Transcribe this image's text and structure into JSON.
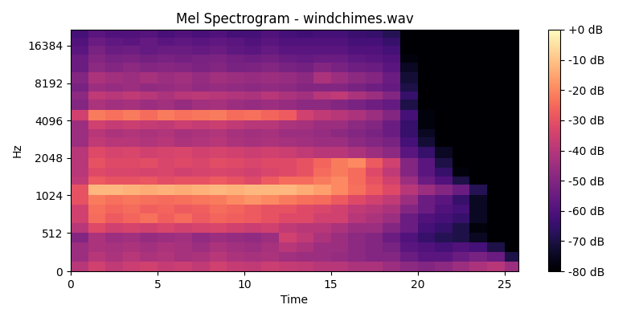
{
  "chart_data": {
    "type": "heatmap",
    "title": "Mel Spectrogram - windchimes.wav",
    "x_label": "Time",
    "y_label": "Hz",
    "color": "magma",
    "xlim": [
      0,
      25.8
    ],
    "xticks": [
      0,
      5,
      10,
      15,
      20,
      25
    ],
    "ylim": [
      0,
      22050
    ],
    "yticks": [
      0,
      512,
      1024,
      2048,
      4096,
      8192,
      16384
    ],
    "time_edges": [
      0,
      1,
      2,
      3,
      4,
      5,
      6,
      7,
      8,
      9,
      10,
      11,
      12,
      13,
      14,
      15,
      16,
      17,
      18,
      19,
      20,
      21,
      22,
      23,
      24,
      25,
      25.8
    ],
    "freq_edges": [
      0,
      128,
      256,
      384,
      512,
      640,
      768,
      896,
      1024,
      1250,
      1450,
      1700,
      2048,
      2500,
      3000,
      3500,
      4096,
      5000,
      6000,
      7000,
      8192,
      10000,
      12000,
      14000,
      16384,
      19000,
      22050
    ],
    "cells": [
      [
        -40,
        -35,
        -38,
        -36,
        -35,
        -37,
        -36,
        -38,
        -35,
        -37,
        -38,
        -36,
        -37,
        -38,
        -40,
        -40,
        -42,
        -42,
        -45,
        -48,
        -50,
        -48,
        -45,
        -42,
        -40,
        -45
      ],
      [
        -45,
        -40,
        -42,
        -40,
        -42,
        -41,
        -43,
        -42,
        -40,
        -42,
        -43,
        -42,
        -44,
        -45,
        -45,
        -46,
        -48,
        -50,
        -50,
        -55,
        -58,
        -58,
        -55,
        -52,
        -55,
        -70
      ],
      [
        -45,
        -42,
        -43,
        -42,
        -44,
        -42,
        -43,
        -45,
        -42,
        -44,
        -45,
        -43,
        -40,
        -42,
        -45,
        -45,
        -48,
        -50,
        -52,
        -58,
        -60,
        -62,
        -60,
        -62,
        -70,
        -80
      ],
      [
        -50,
        -42,
        -45,
        -44,
        -46,
        -45,
        -44,
        -47,
        -45,
        -46,
        -47,
        -45,
        -35,
        -38,
        -42,
        -45,
        -48,
        -50,
        -55,
        -60,
        -65,
        -68,
        -70,
        -75,
        -80,
        -80
      ],
      [
        -40,
        -32,
        -35,
        -34,
        -35,
        -33,
        -35,
        -34,
        -33,
        -35,
        -36,
        -35,
        -38,
        -40,
        -40,
        -42,
        -45,
        -45,
        -50,
        -55,
        -62,
        -65,
        -70,
        -78,
        -80,
        -80
      ],
      [
        -35,
        -25,
        -28,
        -26,
        -24,
        -27,
        -25,
        -28,
        -26,
        -27,
        -28,
        -30,
        -32,
        -32,
        -35,
        -35,
        -40,
        -42,
        -45,
        -55,
        -60,
        -62,
        -65,
        -75,
        -80,
        -80
      ],
      [
        -35,
        -24,
        -26,
        -25,
        -27,
        -26,
        -28,
        -27,
        -25,
        -26,
        -28,
        -30,
        -30,
        -32,
        -33,
        -35,
        -38,
        -40,
        -42,
        -50,
        -55,
        -60,
        -62,
        -75,
        -80,
        -80
      ],
      [
        -30,
        -22,
        -24,
        -23,
        -24,
        -25,
        -24,
        -23,
        -22,
        -20,
        -18,
        -20,
        -22,
        -24,
        -25,
        -28,
        -32,
        -35,
        -38,
        -45,
        -55,
        -58,
        -65,
        -75,
        -80,
        -80
      ],
      [
        -30,
        -12,
        -12,
        -13,
        -14,
        -13,
        -14,
        -13,
        -12,
        -13,
        -12,
        -12,
        -12,
        -14,
        -16,
        -20,
        -24,
        -28,
        -32,
        -40,
        -45,
        -50,
        -55,
        -68,
        -80,
        -80
      ],
      [
        -38,
        -28,
        -30,
        -30,
        -29,
        -31,
        -30,
        -30,
        -28,
        -30,
        -32,
        -28,
        -25,
        -25,
        -22,
        -20,
        -25,
        -30,
        -35,
        -45,
        -55,
        -60,
        -70,
        -80,
        -80,
        -80
      ],
      [
        -40,
        -32,
        -33,
        -33,
        -34,
        -33,
        -35,
        -34,
        -33,
        -34,
        -35,
        -33,
        -32,
        -30,
        -25,
        -22,
        -25,
        -32,
        -38,
        -50,
        -58,
        -65,
        -78,
        -80,
        -80,
        -80
      ],
      [
        -40,
        -30,
        -32,
        -32,
        -31,
        -33,
        -32,
        -33,
        -31,
        -32,
        -33,
        -32,
        -32,
        -30,
        -26,
        -22,
        -20,
        -28,
        -35,
        -50,
        -58,
        -70,
        -80,
        -80,
        -80,
        -80
      ],
      [
        -40,
        -32,
        -34,
        -33,
        -35,
        -34,
        -33,
        -35,
        -34,
        -35,
        -36,
        -35,
        -36,
        -38,
        -40,
        -40,
        -42,
        -45,
        -48,
        -58,
        -65,
        -75,
        -80,
        -80,
        -80,
        -80
      ],
      [
        -45,
        -38,
        -40,
        -40,
        -41,
        -40,
        -42,
        -41,
        -40,
        -42,
        -43,
        -42,
        -43,
        -44,
        -45,
        -45,
        -48,
        -50,
        -52,
        -62,
        -72,
        -80,
        -80,
        -80,
        -80,
        -80
      ],
      [
        -45,
        -40,
        -42,
        -41,
        -42,
        -41,
        -43,
        -42,
        -41,
        -43,
        -44,
        -43,
        -45,
        -45,
        -46,
        -48,
        -50,
        -52,
        -55,
        -65,
        -75,
        -80,
        -80,
        -80,
        -80,
        -80
      ],
      [
        -45,
        -35,
        -37,
        -36,
        -37,
        -38,
        -36,
        -37,
        -36,
        -38,
        -40,
        -40,
        -42,
        -43,
        -45,
        -45,
        -48,
        -50,
        -55,
        -65,
        -78,
        -80,
        -80,
        -80,
        -80,
        -80
      ],
      [
        -35,
        -22,
        -24,
        -22,
        -25,
        -22,
        -24,
        -23,
        -22,
        -25,
        -24,
        -26,
        -28,
        -35,
        -38,
        -40,
        -42,
        -45,
        -50,
        -62,
        -78,
        -80,
        -80,
        -80,
        -80,
        -80
      ],
      [
        -50,
        -42,
        -44,
        -43,
        -45,
        -44,
        -46,
        -44,
        -43,
        -45,
        -46,
        -45,
        -46,
        -48,
        -48,
        -50,
        -52,
        -54,
        -56,
        -70,
        -80,
        -80,
        -80,
        -80,
        -80,
        -80
      ],
      [
        -48,
        -38,
        -40,
        -38,
        -40,
        -42,
        -40,
        -39,
        -40,
        -41,
        -42,
        -40,
        -42,
        -44,
        -40,
        -38,
        -42,
        -45,
        -50,
        -65,
        -80,
        -80,
        -80,
        -80,
        -80,
        -80
      ],
      [
        -52,
        -45,
        -46,
        -45,
        -47,
        -46,
        -45,
        -47,
        -46,
        -47,
        -48,
        -47,
        -48,
        -50,
        -50,
        -50,
        -52,
        -54,
        -56,
        -70,
        -80,
        -80,
        -80,
        -80,
        -80,
        -80
      ],
      [
        -50,
        -42,
        -44,
        -45,
        -43,
        -45,
        -44,
        -46,
        -44,
        -45,
        -46,
        -45,
        -46,
        -48,
        -42,
        -45,
        -48,
        -50,
        -55,
        -72,
        -80,
        -80,
        -80,
        -80,
        -80,
        -80
      ],
      [
        -55,
        -48,
        -50,
        -48,
        -50,
        -49,
        -50,
        -51,
        -50,
        -52,
        -51,
        -50,
        -52,
        -53,
        -50,
        -52,
        -54,
        -55,
        -58,
        -75,
        -80,
        -80,
        -80,
        -80,
        -80,
        -80
      ],
      [
        -55,
        -50,
        -52,
        -51,
        -53,
        -52,
        -53,
        -52,
        -51,
        -53,
        -54,
        -53,
        -55,
        -56,
        -55,
        -55,
        -57,
        -58,
        -60,
        -78,
        -80,
        -80,
        -80,
        -80,
        -80,
        -80
      ],
      [
        -58,
        -52,
        -55,
        -54,
        -56,
        -55,
        -55,
        -56,
        -55,
        -57,
        -58,
        -56,
        -58,
        -58,
        -58,
        -58,
        -60,
        -60,
        -62,
        -80,
        -80,
        -80,
        -80,
        -80,
        -80,
        -80
      ],
      [
        -60,
        -55,
        -57,
        -58,
        -56,
        -58,
        -57,
        -58,
        -57,
        -58,
        -60,
        -58,
        -60,
        -60,
        -60,
        -60,
        -62,
        -62,
        -65,
        -80,
        -80,
        -80,
        -80,
        -80,
        -80,
        -80
      ],
      [
        -62,
        -58,
        -60,
        -60,
        -59,
        -61,
        -60,
        -61,
        -60,
        -62,
        -62,
        -60,
        -62,
        -63,
        -62,
        -62,
        -64,
        -65,
        -68,
        -80,
        -80,
        -80,
        -80,
        -80,
        -80,
        -80
      ]
    ],
    "colorbar": {
      "range": [
        -80,
        0
      ],
      "ticks": [
        {
          "value": 0,
          "label": "+0 dB"
        },
        {
          "value": -10,
          "label": "-10 dB"
        },
        {
          "value": -20,
          "label": "-20 dB"
        },
        {
          "value": -30,
          "label": "-30 dB"
        },
        {
          "value": -40,
          "label": "-40 dB"
        },
        {
          "value": -50,
          "label": "-50 dB"
        },
        {
          "value": -60,
          "label": "-60 dB"
        },
        {
          "value": -70,
          "label": "-70 dB"
        },
        {
          "value": -80,
          "label": "-80 dB"
        }
      ]
    }
  }
}
